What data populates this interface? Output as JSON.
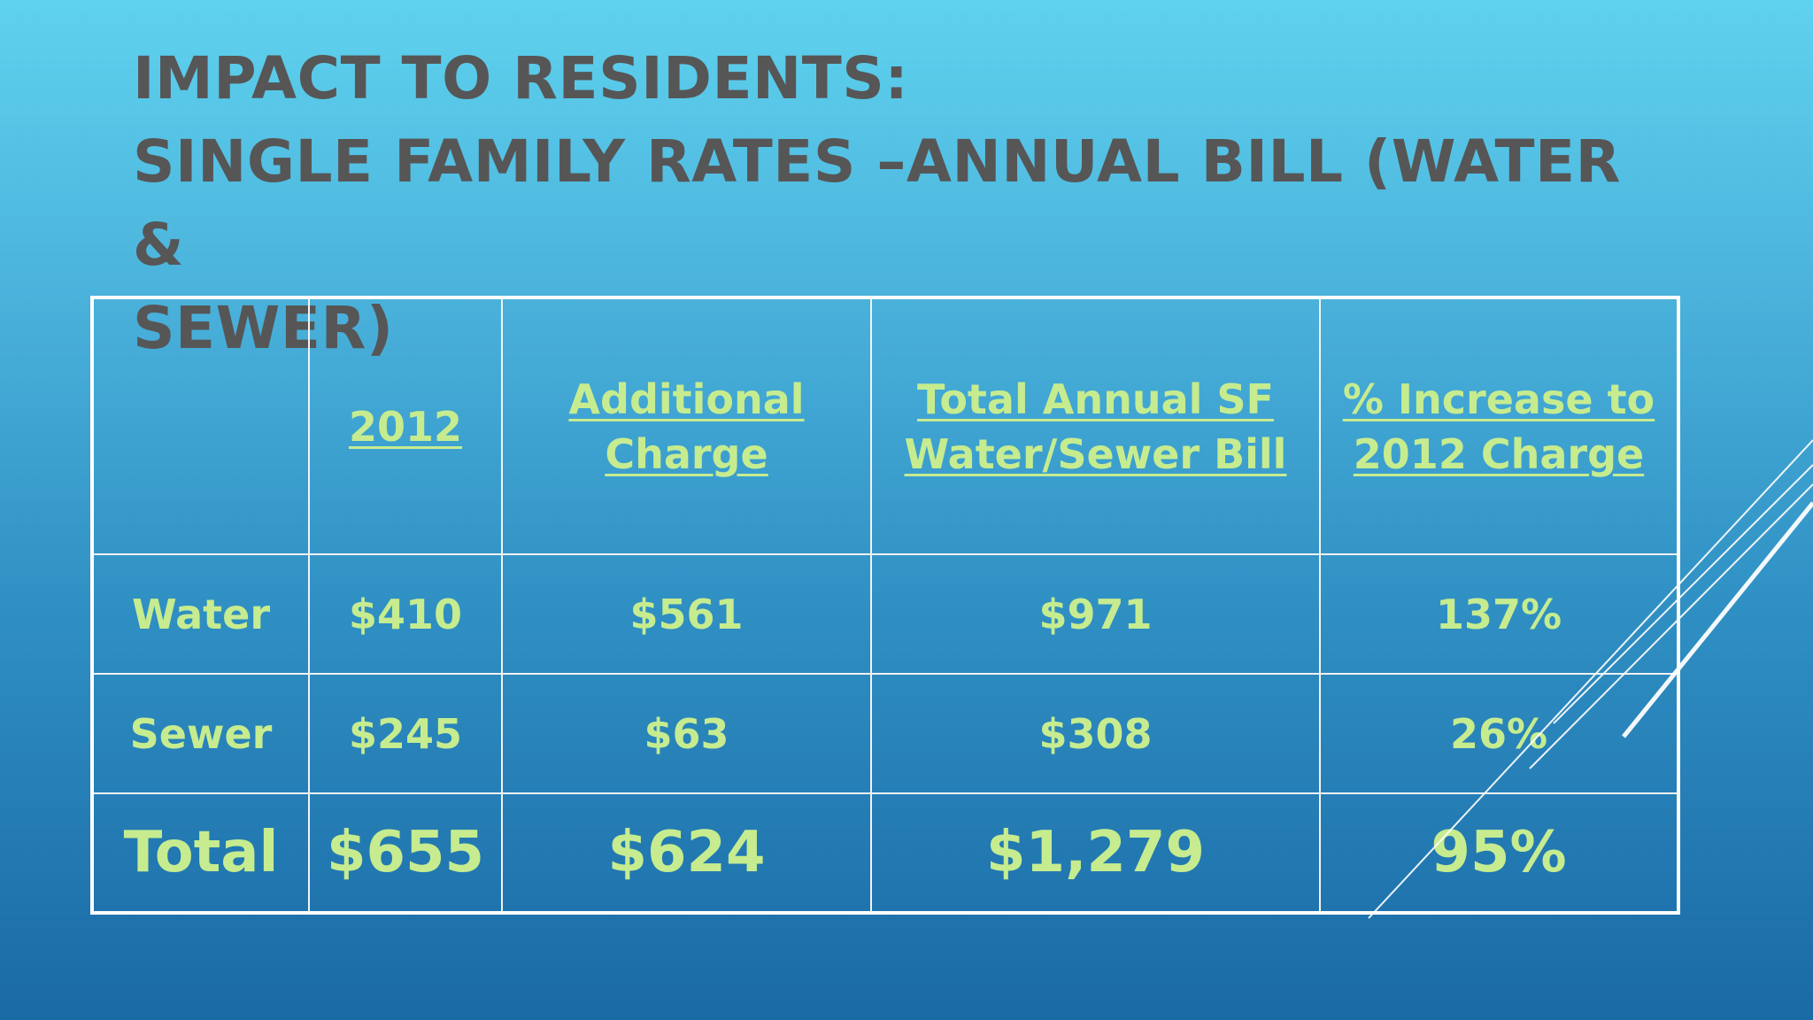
{
  "title": {
    "line1": "IMPACT TO RESIDENTS:",
    "line2": "SINGLE FAMILY RATES –ANNUAL BILL (WATER &",
    "line3": "SEWER)"
  },
  "table": {
    "headers": [
      "",
      "2012",
      "Additional Charge",
      "Total Annual SF Water/Sewer Bill",
      "% Increase to 2012 Charge"
    ],
    "rows": [
      {
        "label": "Water",
        "cells": [
          "$410",
          "$561",
          "$971",
          "137%"
        ]
      },
      {
        "label": "Sewer",
        "cells": [
          "$245",
          "$63",
          "$308",
          "26%"
        ]
      },
      {
        "label": "Total",
        "cells": [
          "$655",
          "$624",
          "$1,279",
          "95%"
        ]
      }
    ]
  },
  "colors": {
    "title": "#565656",
    "cell_text": "#c6ec8f",
    "grid": "#ffffff",
    "background_top": "#5fd2ee",
    "background_bottom": "#1a6aa5"
  }
}
